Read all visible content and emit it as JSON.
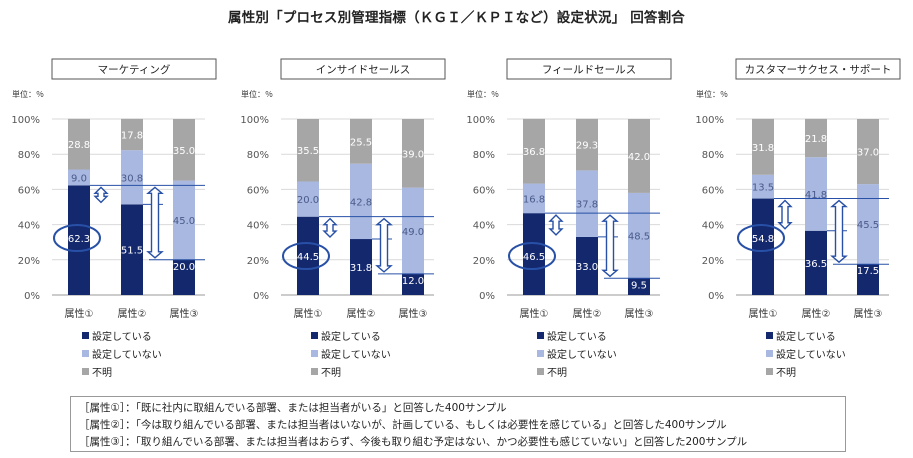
{
  "title": "属性別「プロセス別管理指標（ＫＧＩ／ＫＰＩなど）設定状況」 回答割合",
  "unit_label": "単位：％",
  "colors": {
    "set": "#14286e",
    "not_set": "#a8b8e0",
    "unknown": "#a6a6a6",
    "marker": "#2750a6"
  },
  "chart_data": [
    {
      "type": "bar",
      "stacked": true,
      "title": "マーケティング",
      "categories": [
        "属性①",
        "属性②",
        "属性③"
      ],
      "series": [
        {
          "name": "設定している",
          "values": [
            62.3,
            51.5,
            20.0
          ]
        },
        {
          "name": "設定していない",
          "values": [
            9.0,
            30.8,
            45.0
          ]
        },
        {
          "name": "不明",
          "values": [
            28.8,
            17.8,
            35.0
          ]
        }
      ],
      "ylim": [
        0,
        100
      ],
      "yticks": [
        "0%",
        "20%",
        "40%",
        "60%",
        "80%",
        "100%"
      ],
      "value_labels": [
        [
          "62.3",
          "9.0",
          "28.8"
        ],
        [
          "51.5",
          "30.8",
          "17.8"
        ],
        [
          "20.0",
          "45.0",
          "35.0"
        ]
      ]
    },
    {
      "type": "bar",
      "stacked": true,
      "title": "インサイドセールス",
      "categories": [
        "属性①",
        "属性②",
        "属性③"
      ],
      "series": [
        {
          "name": "設定している",
          "values": [
            44.5,
            31.8,
            12.0
          ]
        },
        {
          "name": "設定していない",
          "values": [
            20.0,
            42.8,
            49.0
          ]
        },
        {
          "name": "不明",
          "values": [
            35.5,
            25.5,
            39.0
          ]
        }
      ],
      "ylim": [
        0,
        100
      ],
      "yticks": [
        "0%",
        "20%",
        "40%",
        "60%",
        "80%",
        "100%"
      ],
      "value_labels": [
        [
          "44.5",
          "20.0",
          "35.5"
        ],
        [
          "31.8",
          "42.8",
          "25.5"
        ],
        [
          "12.0",
          "49.0",
          "39.0"
        ]
      ]
    },
    {
      "type": "bar",
      "stacked": true,
      "title": "フィールドセールス",
      "categories": [
        "属性①",
        "属性②",
        "属性③"
      ],
      "series": [
        {
          "name": "設定している",
          "values": [
            46.5,
            33.0,
            9.5
          ]
        },
        {
          "name": "設定していない",
          "values": [
            16.8,
            37.8,
            48.5
          ]
        },
        {
          "name": "不明",
          "values": [
            36.8,
            29.3,
            42.0
          ]
        }
      ],
      "ylim": [
        0,
        100
      ],
      "yticks": [
        "0%",
        "20%",
        "40%",
        "60%",
        "80%",
        "100%"
      ],
      "value_labels": [
        [
          "46.5",
          "16.8",
          "36.8"
        ],
        [
          "33.0",
          "37.8",
          "29.3"
        ],
        [
          "9.5",
          "48.5",
          "42.0"
        ]
      ]
    },
    {
      "type": "bar",
      "stacked": true,
      "title": "カスタマーサクセス・サポート",
      "categories": [
        "属性①",
        "属性②",
        "属性③"
      ],
      "series": [
        {
          "name": "設定している",
          "values": [
            54.8,
            36.5,
            17.5
          ]
        },
        {
          "name": "設定していない",
          "values": [
            13.5,
            41.8,
            45.5
          ]
        },
        {
          "name": "不明",
          "values": [
            31.8,
            21.8,
            37.0
          ]
        }
      ],
      "ylim": [
        0,
        100
      ],
      "yticks": [
        "0%",
        "20%",
        "40%",
        "60%",
        "80%",
        "100%"
      ],
      "value_labels": [
        [
          "54.8",
          "13.5",
          "31.8"
        ],
        [
          "36.5",
          "41.8",
          "21.8"
        ],
        [
          "17.5",
          "45.5",
          "37.0"
        ]
      ]
    }
  ],
  "legend": [
    "設定している",
    "設定していない",
    "不明"
  ],
  "notes": [
    "［属性①］：「既に社内に取組んでいる部署、または担当者がいる」と回答した400サンプル",
    "［属性②］：「今は取り組んでいる部署、または担当者はいないが、計画している、もしくは必要性を感じている」と回答した400サンプル",
    "［属性③］：「取り組んでいる部署、または担当者はおらず、今後も取り組む予定はない、かつ必要性も感じていない」と回答した200サンプル"
  ]
}
